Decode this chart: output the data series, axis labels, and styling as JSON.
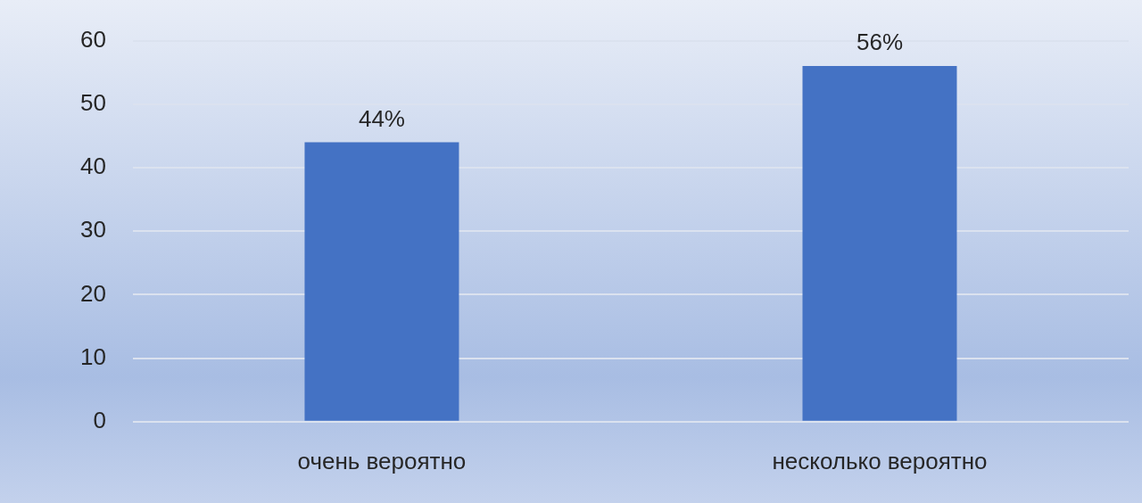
{
  "chart_data": {
    "type": "bar",
    "categories": [
      "очень вероятно",
      "несколько вероятно"
    ],
    "values": [
      44,
      56
    ],
    "value_labels": [
      "44%",
      "56%"
    ],
    "color": "#4472c4",
    "ylim": [
      0,
      60
    ],
    "yticks": [
      0,
      10,
      20,
      30,
      40,
      50,
      60
    ],
    "grid": "y",
    "legend": false
  }
}
